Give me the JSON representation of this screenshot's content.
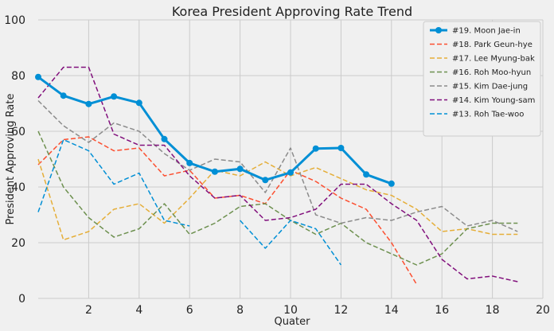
{
  "chart_data": {
    "type": "line",
    "title": "Korea President Approving Rate Trend",
    "xlabel": "Quater",
    "ylabel": "President Approving Rate",
    "xlim": [
      0,
      20
    ],
    "ylim": [
      0,
      100
    ],
    "xticks": [
      2,
      4,
      6,
      8,
      10,
      12,
      14,
      16,
      18,
      20
    ],
    "yticks": [
      0,
      20,
      40,
      60,
      80,
      100
    ],
    "grid": true,
    "legend_position": "top-right",
    "series": [
      {
        "name": "#19. Moon Jae-in",
        "color": "#008fd5",
        "style": "solid-marker",
        "x": [
          0,
          1,
          2,
          3,
          4,
          5,
          6,
          7,
          8,
          9,
          10,
          11,
          12,
          13,
          14
        ],
        "y": [
          79.5,
          72.8,
          69.8,
          72.5,
          70.2,
          57.2,
          48.6,
          45.5,
          46.5,
          42.5,
          45.2,
          53.8,
          54.0,
          44.5,
          41.2
        ]
      },
      {
        "name": "#18. Park Geun-hye",
        "color": "#fc4f30",
        "style": "dashed",
        "x": [
          0,
          1,
          2,
          3,
          4,
          5,
          6,
          7,
          8,
          9,
          10,
          11,
          12,
          13,
          14,
          15
        ],
        "y": [
          48,
          57,
          58,
          53,
          54,
          44,
          46,
          36,
          37,
          34,
          46,
          42,
          36,
          32,
          20,
          5
        ]
      },
      {
        "name": "#17. Lee Myung-bak",
        "color": "#e5ae38",
        "style": "dashed",
        "x": [
          0,
          1,
          2,
          3,
          4,
          5,
          6,
          7,
          8,
          9,
          10,
          11,
          12,
          13,
          14,
          15,
          16,
          17,
          18,
          19
        ],
        "y": [
          50,
          21,
          24,
          32,
          34,
          27,
          36,
          46,
          44,
          49,
          44,
          47,
          43,
          39,
          37,
          32,
          24,
          25,
          23,
          23
        ]
      },
      {
        "name": "#16. Roh Moo-hyun",
        "color": "#6d904f",
        "style": "dashed",
        "x": [
          0,
          1,
          2,
          3,
          4,
          5,
          6,
          7,
          8,
          9,
          10,
          11,
          12,
          13,
          14,
          15,
          16,
          17,
          18,
          19
        ],
        "y": [
          60,
          40,
          29,
          22,
          25,
          34,
          23,
          27,
          33,
          34,
          28,
          23,
          27,
          20,
          16,
          12,
          16,
          25,
          27,
          27
        ]
      },
      {
        "name": "#15. Kim Dae-jung",
        "color": "#8b8b8b",
        "style": "dashed",
        "x": [
          0,
          1,
          2,
          3,
          4,
          5,
          6,
          7,
          8,
          9,
          10,
          11,
          12,
          13,
          14,
          15,
          16,
          17,
          18,
          19
        ],
        "y": [
          71,
          62,
          56,
          63,
          60,
          52,
          46,
          50,
          49,
          38,
          54,
          30,
          27,
          29,
          28,
          31,
          33,
          26,
          28,
          24
        ]
      },
      {
        "name": "#14. Kim Young-sam",
        "color": "#810f7c",
        "style": "dashed",
        "x": [
          0,
          1,
          2,
          3,
          4,
          5,
          6,
          7,
          8,
          9,
          10,
          11,
          12,
          13,
          14,
          15,
          16,
          17,
          18,
          19
        ],
        "y": [
          72,
          83,
          83,
          59,
          55,
          55,
          44,
          36,
          37,
          28,
          29,
          32,
          41,
          41,
          34,
          28,
          14,
          7,
          8,
          6
        ]
      },
      {
        "name": "#13. Roh Tae-woo",
        "color": "#008fd5",
        "style": "dashed",
        "segments": [
          {
            "x": [
              0,
              1,
              2,
              3,
              4,
              5,
              6
            ],
            "y": [
              31,
              57,
              53,
              41,
              45,
              28,
              26
            ]
          },
          {
            "x": [
              8,
              9,
              10,
              11,
              12
            ],
            "y": [
              28,
              18,
              28,
              25,
              12
            ]
          }
        ]
      }
    ]
  }
}
